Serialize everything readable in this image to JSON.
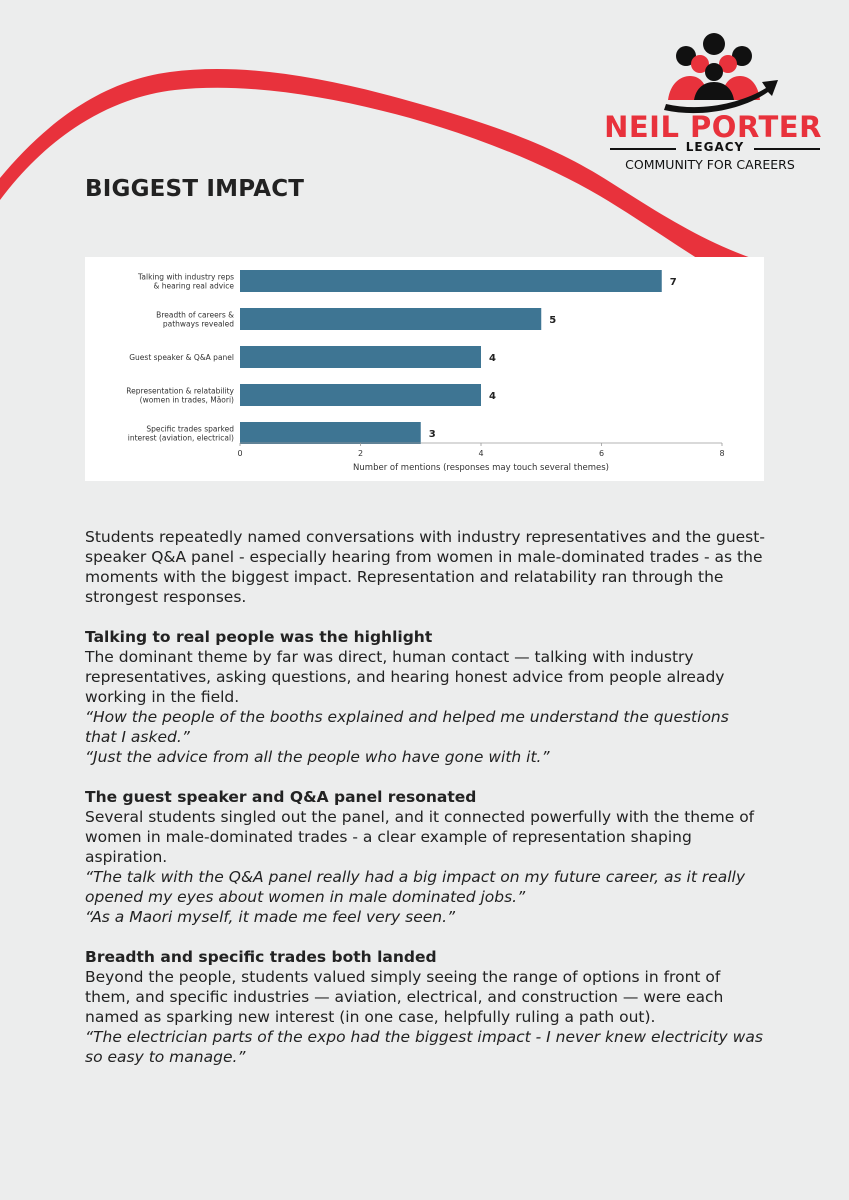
{
  "brand": {
    "name": "NEIL PORTER",
    "legacy": "LEGACY",
    "tagline": "COMMUNITY FOR CAREERS",
    "accent": "#e8323c"
  },
  "page": {
    "title": "BIGGEST IMPACT"
  },
  "chart_data": {
    "type": "bar",
    "orientation": "horizontal",
    "categories": [
      [
        "Talking with industry reps",
        "& hearing real advice"
      ],
      [
        "Breadth of careers &",
        "pathways revealed"
      ],
      [
        "Guest speaker & Q&A panel"
      ],
      [
        "Representation & relatability",
        "(women in trades, Māori)"
      ],
      [
        "Specific trades sparked",
        "interest (aviation, electrical)"
      ]
    ],
    "values": [
      7,
      5,
      4,
      4,
      3
    ],
    "xlabel": "Number of mentions (responses may touch several themes)",
    "xlim": [
      0,
      8
    ],
    "xticks": [
      "0",
      "2",
      "4",
      "6",
      "8"
    ],
    "bar_color": "#3e7593",
    "grid": false
  },
  "body": {
    "intro": "Students repeatedly named conversations with industry representatives and the guest-speaker Q&A panel - especially hearing from women in male-dominated trades - as the moments with the biggest impact. Representation and relatability ran through the strongest responses.",
    "sections": [
      {
        "heading": "Talking to real people was the highlight",
        "text": "The dominant theme by far was direct, human contact — talking with industry representatives, asking questions, and hearing honest advice from people already working in the field.",
        "quotes": [
          "“How the people of the booths explained and helped me understand the questions that I asked.”",
          "“Just the advice from all the people who have gone with it.”"
        ]
      },
      {
        "heading": "The guest speaker and Q&A panel resonated",
        "text": "Several students singled out the panel, and it connected powerfully with the theme of women in male-dominated trades - a clear example of representation shaping aspiration.",
        "quotes": [
          "“The talk with the Q&A panel really had a big impact on my future career, as it really opened my eyes about women in male dominated jobs.”",
          "“As a Maori myself, it made me feel very seen.”"
        ]
      },
      {
        "heading": "Breadth and specific trades both landed",
        "text": "Beyond the people, students valued simply seeing the range of options in front of them, and specific industries — aviation, electrical, and construction — were each named as sparking new interest (in one case, helpfully ruling a path out).",
        "quotes": [
          "“The electrician parts of the expo had the biggest impact - I never knew electricity was so easy to manage.”"
        ]
      }
    ]
  }
}
